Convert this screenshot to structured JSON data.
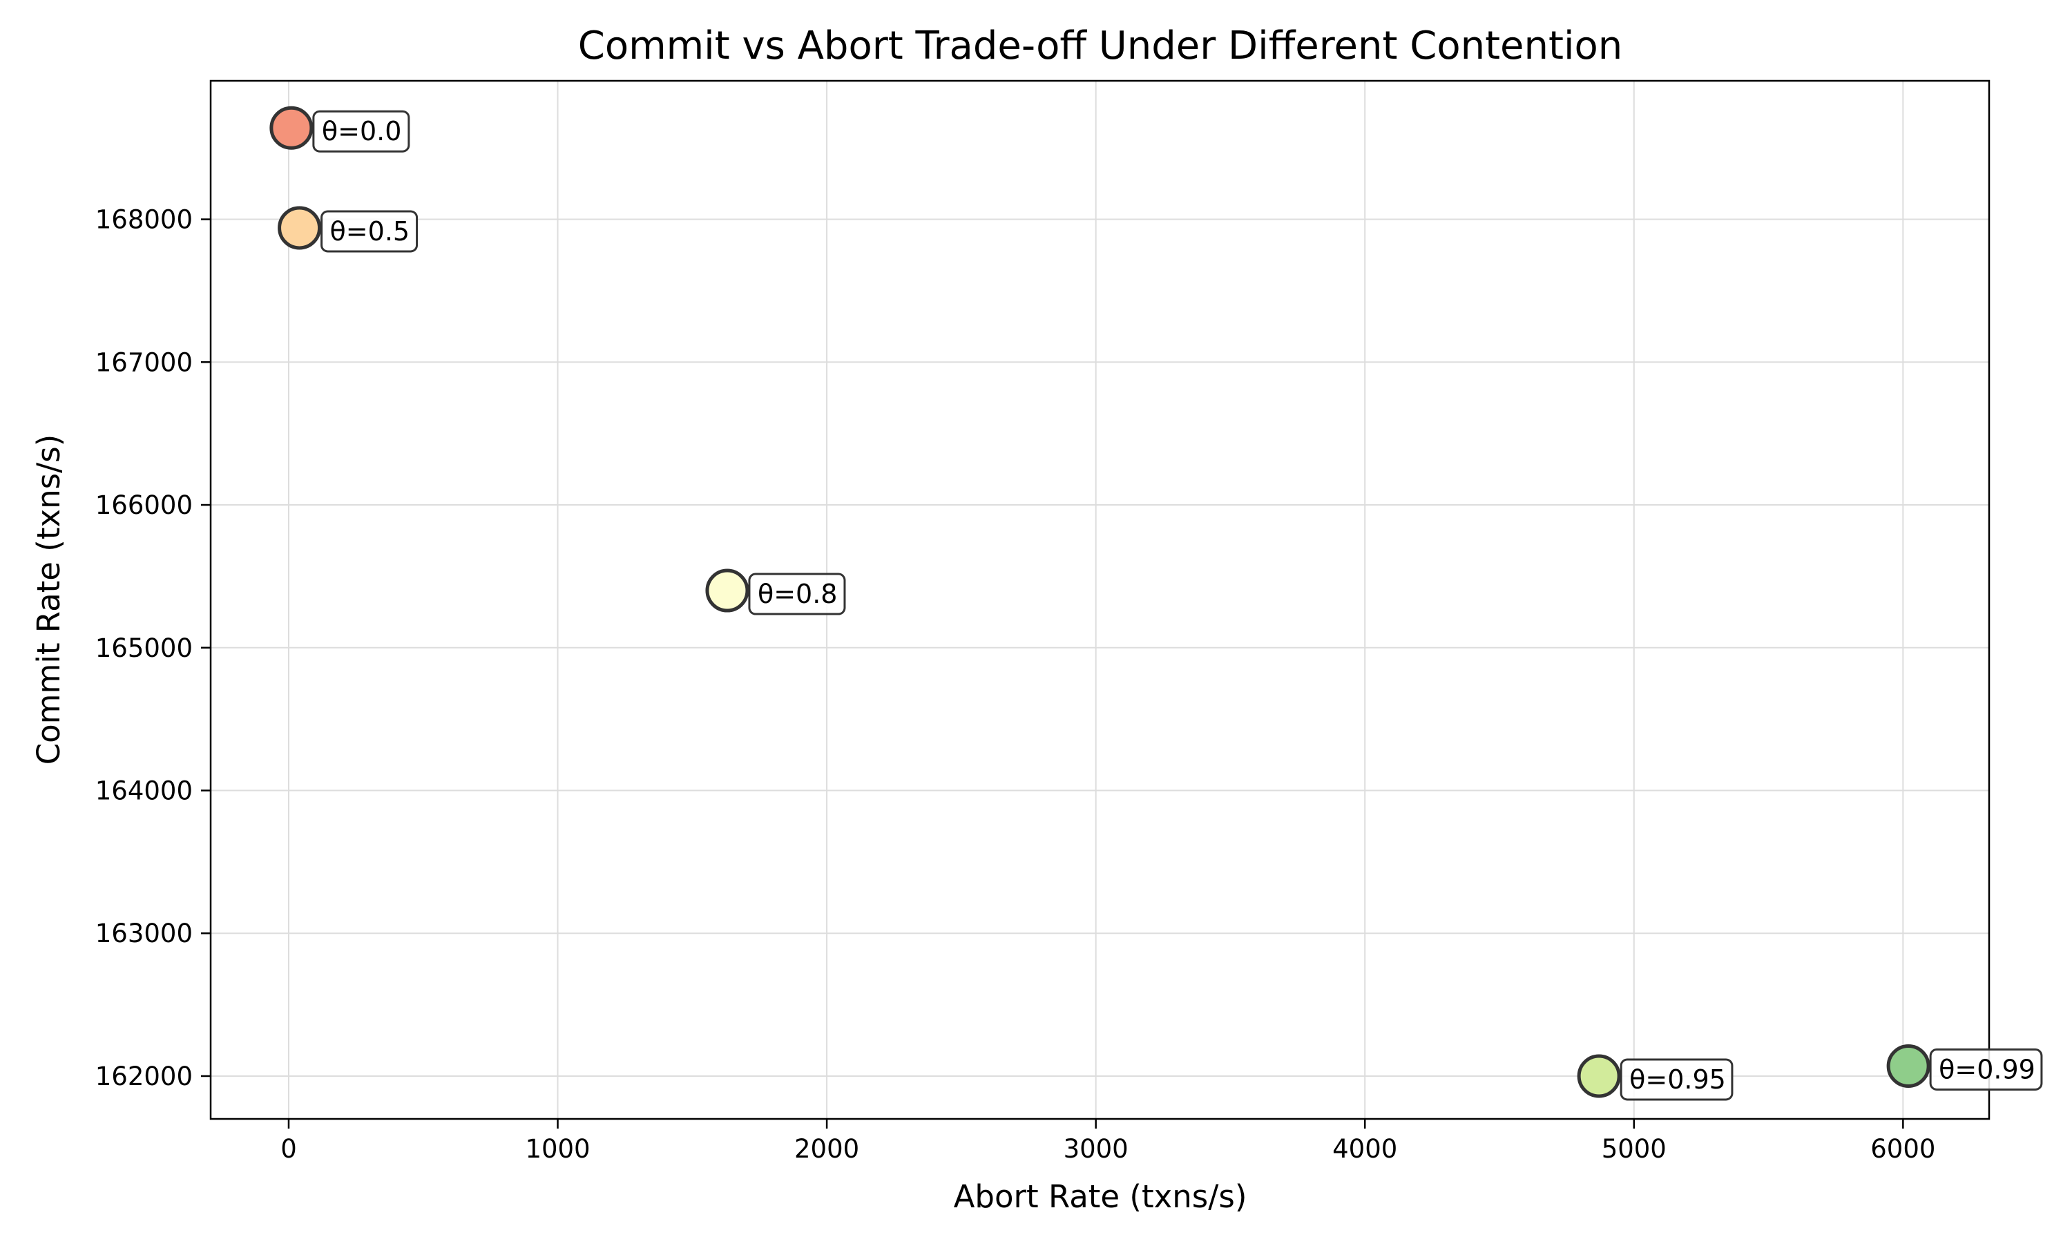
{
  "chart_data": {
    "type": "scatter",
    "title": "Commit vs Abort Trade-off Under Different Contention",
    "xlabel": "Abort Rate (txns/s)",
    "ylabel": "Commit Rate (txns/s)",
    "xlim": [
      -290,
      6320
    ],
    "ylim": [
      161700,
      168970
    ],
    "xticks": [
      0,
      1000,
      2000,
      3000,
      4000,
      5000,
      6000
    ],
    "yticks": [
      162000,
      163000,
      164000,
      165000,
      166000,
      167000,
      168000
    ],
    "grid": true,
    "points": [
      {
        "label": "θ=0.0",
        "x": 10,
        "y": 168640,
        "color": "#f4937a"
      },
      {
        "label": "θ=0.5",
        "x": 40,
        "y": 167940,
        "color": "#fdd49e"
      },
      {
        "label": "θ=0.8",
        "x": 1630,
        "y": 165400,
        "color": "#fdfdd0"
      },
      {
        "label": "θ=0.95",
        "x": 4870,
        "y": 162000,
        "color": "#d2eb9b"
      },
      {
        "label": "θ=0.99",
        "x": 6020,
        "y": 162070,
        "color": "#8fcd8a"
      }
    ]
  }
}
